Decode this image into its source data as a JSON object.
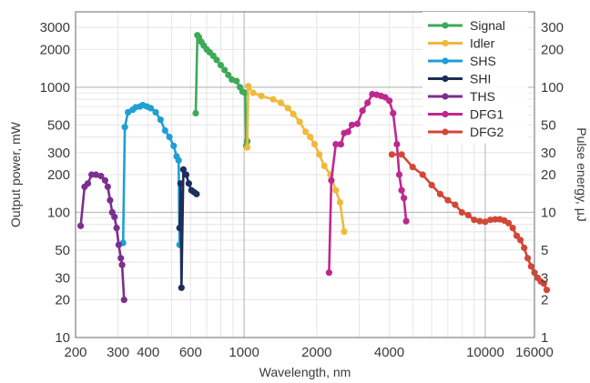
{
  "chart_data": {
    "type": "line",
    "xscale": "log",
    "yscale": "log",
    "xlim": [
      200,
      16000
    ],
    "ylim": [
      10,
      4000
    ],
    "xlabel": "Wavelength, nm",
    "ylabel": "Output power, mW",
    "y2label": "Pulse energy, µJ",
    "grid": true,
    "legend_position": "top-right",
    "x_ticks": [
      {
        "value": 200,
        "label": "200"
      },
      {
        "value": 300,
        "label": "300"
      },
      {
        "value": 400,
        "label": "400"
      },
      {
        "value": 600,
        "label": "600"
      },
      {
        "value": 1000,
        "label": "1000"
      },
      {
        "value": 2000,
        "label": "2000"
      },
      {
        "value": 4000,
        "label": "4000"
      },
      {
        "value": 10000,
        "label": "10000"
      },
      {
        "value": 16000,
        "label": "16000"
      }
    ],
    "y_ticks": [
      {
        "value": 10,
        "label": "10"
      },
      {
        "value": 20,
        "label": "20"
      },
      {
        "value": 30,
        "label": "30"
      },
      {
        "value": 50,
        "label": "50"
      },
      {
        "value": 100,
        "label": "100"
      },
      {
        "value": 200,
        "label": "200"
      },
      {
        "value": 300,
        "label": "300"
      },
      {
        "value": 500,
        "label": "500"
      },
      {
        "value": 1000,
        "label": "1000"
      },
      {
        "value": 2000,
        "label": "2000"
      },
      {
        "value": 3000,
        "label": "3000"
      }
    ],
    "y2_ticks": [
      {
        "value": 10,
        "label": "1"
      },
      {
        "value": 20,
        "label": "2"
      },
      {
        "value": 30,
        "label": "3"
      },
      {
        "value": 50,
        "label": "5"
      },
      {
        "value": 100,
        "label": "10"
      },
      {
        "value": 200,
        "label": "20"
      },
      {
        "value": 300,
        "label": "30"
      },
      {
        "value": 500,
        "label": "50"
      },
      {
        "value": 1000,
        "label": "100"
      },
      {
        "value": 2000,
        "label": "200"
      },
      {
        "value": 3000,
        "label": "300"
      }
    ],
    "series": [
      {
        "name": "Signal",
        "color": "#3daa5a",
        "points": [
          [
            630,
            620
          ],
          [
            640,
            2600
          ],
          [
            650,
            2500
          ],
          [
            665,
            2300
          ],
          [
            680,
            2150
          ],
          [
            700,
            2000
          ],
          [
            720,
            1900
          ],
          [
            745,
            1780
          ],
          [
            770,
            1650
          ],
          [
            800,
            1500
          ],
          [
            830,
            1370
          ],
          [
            860,
            1250
          ],
          [
            890,
            1150
          ],
          [
            930,
            1120
          ],
          [
            960,
            1000
          ],
          [
            985,
            920
          ],
          [
            1010,
            900
          ],
          [
            1020,
            340
          ],
          [
            1030,
            370
          ]
        ]
      },
      {
        "name": "Idler",
        "color": "#f0b93a",
        "points": [
          [
            1030,
            330
          ],
          [
            1040,
            1020
          ],
          [
            1090,
            900
          ],
          [
            1180,
            850
          ],
          [
            1320,
            800
          ],
          [
            1420,
            750
          ],
          [
            1520,
            680
          ],
          [
            1600,
            610
          ],
          [
            1700,
            530
          ],
          [
            1800,
            440
          ],
          [
            1880,
            400
          ],
          [
            1960,
            350
          ],
          [
            2050,
            290
          ],
          [
            2150,
            235
          ],
          [
            2280,
            200
          ],
          [
            2400,
            150
          ],
          [
            2500,
            120
          ],
          [
            2600,
            70
          ]
        ]
      },
      {
        "name": "SHS",
        "color": "#1f9fd5",
        "points": [
          [
            315,
            57
          ],
          [
            320,
            480
          ],
          [
            330,
            630
          ],
          [
            345,
            660
          ],
          [
            355,
            690
          ],
          [
            370,
            700
          ],
          [
            380,
            720
          ],
          [
            395,
            700
          ],
          [
            410,
            680
          ],
          [
            430,
            630
          ],
          [
            450,
            550
          ],
          [
            470,
            450
          ],
          [
            490,
            400
          ],
          [
            510,
            340
          ],
          [
            525,
            280
          ],
          [
            535,
            260
          ],
          [
            540,
            55
          ]
        ]
      },
      {
        "name": "SHI",
        "color": "#1e2e5a",
        "points": [
          [
            540,
            75
          ],
          [
            545,
            170
          ],
          [
            550,
            25
          ],
          [
            560,
            220
          ],
          [
            575,
            200
          ],
          [
            590,
            170
          ],
          [
            605,
            150
          ],
          [
            620,
            145
          ],
          [
            635,
            140
          ]
        ]
      },
      {
        "name": "THS",
        "color": "#7b2f8e",
        "points": [
          [
            210,
            78
          ],
          [
            218,
            160
          ],
          [
            225,
            170
          ],
          [
            233,
            200
          ],
          [
            243,
            200
          ],
          [
            255,
            195
          ],
          [
            265,
            180
          ],
          [
            272,
            160
          ],
          [
            278,
            125
          ],
          [
            284,
            100
          ],
          [
            290,
            92
          ],
          [
            296,
            75
          ],
          [
            302,
            55
          ],
          [
            308,
            43
          ],
          [
            312,
            38
          ],
          [
            318,
            20
          ]
        ]
      },
      {
        "name": "DFG1",
        "color": "#c0288f",
        "points": [
          [
            2250,
            33
          ],
          [
            2300,
            180
          ],
          [
            2400,
            350
          ],
          [
            2520,
            350
          ],
          [
            2600,
            430
          ],
          [
            2700,
            440
          ],
          [
            2800,
            500
          ],
          [
            2950,
            510
          ],
          [
            3100,
            650
          ],
          [
            3250,
            750
          ],
          [
            3400,
            880
          ],
          [
            3550,
            870
          ],
          [
            3700,
            850
          ],
          [
            3850,
            830
          ],
          [
            4000,
            780
          ],
          [
            4150,
            620
          ],
          [
            4300,
            350
          ],
          [
            4400,
            200
          ],
          [
            4500,
            150
          ],
          [
            4600,
            130
          ],
          [
            4700,
            85
          ]
        ]
      },
      {
        "name": "DFG2",
        "color": "#d24736",
        "points": [
          [
            4100,
            290
          ],
          [
            4500,
            290
          ],
          [
            5000,
            230
          ],
          [
            5500,
            200
          ],
          [
            6000,
            165
          ],
          [
            6500,
            140
          ],
          [
            7000,
            125
          ],
          [
            7500,
            115
          ],
          [
            8000,
            100
          ],
          [
            8500,
            95
          ],
          [
            9000,
            87
          ],
          [
            9500,
            85
          ],
          [
            10000,
            84
          ],
          [
            10500,
            87
          ],
          [
            11000,
            88
          ],
          [
            11500,
            88
          ],
          [
            12000,
            86
          ],
          [
            12500,
            82
          ],
          [
            13000,
            75
          ],
          [
            13500,
            65
          ],
          [
            14000,
            60
          ],
          [
            14500,
            52
          ],
          [
            15000,
            43
          ],
          [
            15500,
            37
          ],
          [
            16000,
            33
          ],
          [
            16500,
            30
          ],
          [
            17000,
            28
          ],
          [
            17500,
            27
          ],
          [
            18000,
            24
          ]
        ]
      }
    ]
  }
}
